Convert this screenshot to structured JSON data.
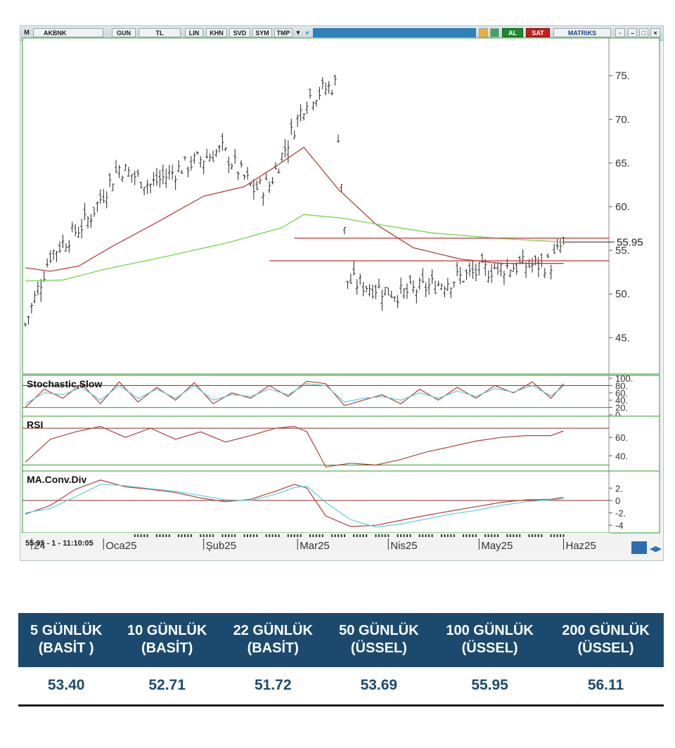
{
  "toolbar": {
    "logo": "M",
    "symbol": "AKBNK",
    "period": "GUN",
    "currency": "TL",
    "scale": "LIN",
    "buttons": [
      "KHN",
      "SVD",
      "SYM",
      "TMP"
    ],
    "buy_label": "AL",
    "sell_label": "SAT",
    "brand": "MATRiKS",
    "colors": {
      "bar": "#2e80b8",
      "buy": "#1d8a2e",
      "sell": "#c21d1d"
    }
  },
  "status_readout": "55.95 - 1 - 11:10:05",
  "chart_data": [
    {
      "type": "candlestick",
      "name": "price",
      "ylim": [
        41,
        79
      ],
      "yticks": [
        "75.",
        "70.",
        "65.",
        "60.",
        "55.",
        "50.",
        "45."
      ],
      "last_value_label": "55.95",
      "x_labels": [
        "24",
        "Oca25",
        "Şub25",
        "Mar25",
        "Nis25",
        "May25",
        "Haz25"
      ],
      "x_label_index": [
        2,
        25,
        57,
        87,
        116,
        145,
        172
      ],
      "n_days": 182,
      "x": [
        "2024-11-01",
        "2024-11-15",
        "2024-12-01",
        "2024-12-15",
        "2025-01-01",
        "2025-01-15",
        "2025-02-01",
        "2025-02-15",
        "2025-03-01",
        "2025-03-15",
        "2025-04-01",
        "2025-04-15",
        "2025-05-01",
        "2025-05-15",
        "2025-06-01",
        "2025-06-03"
      ],
      "close": [
        46.5,
        54.5,
        58.5,
        64.5,
        62.5,
        64.5,
        66.5,
        62.0,
        62.5,
        72.5,
        74.0,
        51.5,
        50.0,
        53.0,
        53.5,
        55.95
      ],
      "series": [
        {
          "name": "MA (kırmızı)",
          "color": "#b0403a",
          "points": [
            [
              0,
              53
            ],
            [
              8,
              52.6
            ],
            [
              17,
              53.2
            ],
            [
              28,
              55.5
            ],
            [
              42,
              58.2
            ],
            [
              57,
              61.2
            ],
            [
              70,
              62.3
            ],
            [
              80,
              64.6
            ],
            [
              89,
              66.8
            ],
            [
              100,
              62
            ],
            [
              112,
              58
            ],
            [
              124,
              55.3
            ],
            [
              139,
              54
            ],
            [
              152,
              53.5
            ],
            [
              172,
              53.5
            ]
          ]
        },
        {
          "name": "MA (yeşil)",
          "color": "#6fd64a",
          "points": [
            [
              0,
              51.5
            ],
            [
              12,
              51.6
            ],
            [
              25,
              52.8
            ],
            [
              45,
              54.3
            ],
            [
              65,
              55.9
            ],
            [
              82,
              57.6
            ],
            [
              89,
              59.1
            ],
            [
              101,
              58.7
            ],
            [
              114,
              57.9
            ],
            [
              130,
              57
            ],
            [
              150,
              56.4
            ],
            [
              172,
              55.95
            ]
          ]
        }
      ],
      "horizontal_lines": [
        {
          "value": 56.4,
          "from_index": 86,
          "color": "#c83030"
        },
        {
          "value": 53.8,
          "from_index": 78,
          "color": "#c83030"
        }
      ]
    },
    {
      "type": "line",
      "name": "Stochastic,Slow",
      "ylim": [
        0,
        100
      ],
      "yticks": [
        "100.",
        "80.",
        "60.",
        "40.",
        "20.",
        "0."
      ],
      "levels": [
        80,
        20
      ],
      "x": [
        0,
        6,
        12,
        18,
        24,
        30,
        36,
        42,
        48,
        54,
        60,
        66,
        72,
        78,
        84,
        90,
        96,
        102,
        108,
        114,
        120,
        126,
        132,
        138,
        144,
        150,
        156,
        162,
        168,
        172
      ],
      "series": [
        {
          "name": "%K",
          "color": "#b0403a",
          "values": [
            20,
            70,
            45,
            85,
            30,
            90,
            35,
            75,
            40,
            88,
            30,
            60,
            45,
            80,
            50,
            92,
            85,
            25,
            40,
            55,
            30,
            70,
            40,
            75,
            45,
            80,
            60,
            90,
            45,
            85
          ]
        },
        {
          "name": "%D",
          "color": "#5fc9d6",
          "values": [
            30,
            60,
            55,
            75,
            40,
            80,
            45,
            70,
            45,
            80,
            40,
            55,
            50,
            70,
            55,
            85,
            80,
            35,
            45,
            50,
            40,
            60,
            45,
            65,
            50,
            72,
            62,
            80,
            52,
            78
          ]
        }
      ]
    },
    {
      "type": "line",
      "name": "RSI",
      "ylim": [
        25,
        80
      ],
      "yticks": [
        "60.",
        "40."
      ],
      "levels": [
        70,
        30
      ],
      "x": [
        0,
        8,
        16,
        24,
        32,
        40,
        48,
        56,
        64,
        72,
        80,
        86,
        90,
        96,
        104,
        112,
        120,
        128,
        136,
        144,
        152,
        160,
        168,
        172
      ],
      "series": [
        {
          "name": "RSI",
          "color": "#b0403a",
          "values": [
            33,
            58,
            66,
            72,
            60,
            70,
            58,
            66,
            55,
            62,
            70,
            72,
            66,
            28,
            32,
            30,
            36,
            44,
            50,
            56,
            60,
            62,
            62,
            67
          ]
        }
      ]
    },
    {
      "type": "line",
      "name": "MA.Conv.Div",
      "ylim": [
        -5,
        4.3
      ],
      "yticks": [
        "2.",
        "0",
        "-2.",
        "-4"
      ],
      "levels": [
        0
      ],
      "x": [
        0,
        8,
        16,
        24,
        32,
        40,
        48,
        56,
        64,
        72,
        80,
        86,
        90,
        96,
        104,
        112,
        120,
        128,
        136,
        144,
        152,
        160,
        168,
        172
      ],
      "series": [
        {
          "name": "MACD",
          "color": "#b0403a",
          "values": [
            -2.2,
            -0.8,
            1.8,
            3.3,
            2.2,
            1.8,
            1.3,
            0.4,
            -0.2,
            0.2,
            1.5,
            2.6,
            2.0,
            -2.5,
            -4.2,
            -4.0,
            -3.2,
            -2.4,
            -1.7,
            -1.0,
            -0.3,
            0.1,
            0.2,
            0.5
          ]
        },
        {
          "name": "Signal",
          "color": "#5fd0e0",
          "values": [
            -2.0,
            -1.3,
            0.6,
            2.6,
            2.4,
            1.9,
            1.5,
            0.8,
            0.1,
            0.0,
            1.0,
            2.1,
            2.3,
            -0.3,
            -3.1,
            -4.3,
            -3.8,
            -3.0,
            -2.2,
            -1.6,
            -0.8,
            -0.2,
            0.1,
            0.3
          ]
        }
      ]
    }
  ],
  "ma_table": {
    "headers": [
      [
        "5 GÜNLÜK",
        "(BASİT )"
      ],
      [
        "10 GÜNLÜK",
        "(BASİT)"
      ],
      [
        "22 GÜNLÜK",
        "(BASİT)"
      ],
      [
        "50 GÜNLÜK",
        "(ÜSSEL)"
      ],
      [
        "100 GÜNLÜK",
        "(ÜSSEL)"
      ],
      [
        "200 GÜNLÜK",
        "(ÜSSEL)"
      ]
    ],
    "values": [
      "53.40",
      "52.71",
      "51.72",
      "53.69",
      "55.95",
      "56.11"
    ],
    "colors": {
      "header_bg": "#1c4a6e",
      "value_text": "#1c4a6e"
    }
  }
}
